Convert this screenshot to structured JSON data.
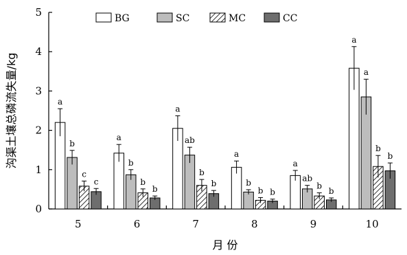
{
  "chart_data": {
    "type": "bar",
    "xlabel": "月 份",
    "ylabel": "沟渠土壤总磷流失量/kg",
    "ylim": [
      0,
      5
    ],
    "yticks": [
      0,
      1,
      2,
      3,
      4,
      5
    ],
    "grid": false,
    "legend_position": "top",
    "categories": [
      "5",
      "6",
      "7",
      "8",
      "9",
      "10"
    ],
    "series": [
      {
        "name": "BG",
        "pattern": "white",
        "values": [
          2.2,
          1.42,
          2.05,
          1.06,
          0.85,
          3.58
        ],
        "errors": [
          0.35,
          0.22,
          0.32,
          0.16,
          0.13,
          0.55
        ],
        "labels": [
          "a",
          "a",
          "a",
          "a",
          "a",
          "a"
        ]
      },
      {
        "name": "SC",
        "pattern": "lightgray",
        "values": [
          1.31,
          0.87,
          1.37,
          0.43,
          0.51,
          2.85
        ],
        "errors": [
          0.18,
          0.13,
          0.2,
          0.06,
          0.09,
          0.45
        ],
        "labels": [
          "b",
          "b",
          "ab",
          "b",
          "ab",
          "a"
        ]
      },
      {
        "name": "MC",
        "pattern": "hatch",
        "values": [
          0.58,
          0.41,
          0.6,
          0.22,
          0.33,
          1.08
        ],
        "errors": [
          0.13,
          0.1,
          0.15,
          0.07,
          0.08,
          0.28
        ],
        "labels": [
          "c",
          "b",
          "b",
          "b",
          "b",
          "b"
        ]
      },
      {
        "name": "CC",
        "pattern": "darkgray",
        "values": [
          0.44,
          0.28,
          0.39,
          0.2,
          0.23,
          0.97
        ],
        "errors": [
          0.08,
          0.05,
          0.08,
          0.05,
          0.05,
          0.2
        ],
        "labels": [
          "c",
          "b",
          "b",
          "b",
          "b",
          "b"
        ]
      }
    ],
    "colors": {
      "white": "#ffffff",
      "lightgray": "#bdbdbd",
      "darkgray": "#6e6e6e",
      "hatch_line": "#000000",
      "stroke": "#000000"
    }
  }
}
